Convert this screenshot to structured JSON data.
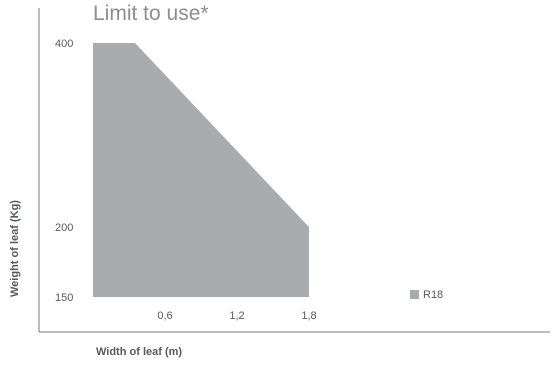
{
  "chart_data": {
    "type": "area",
    "title": "Limit to use*",
    "xlabel": "Width of leaf (m)",
    "ylabel": "Weight of leaf (Kg)",
    "x_ticks": [
      "0,6",
      "1,2",
      "1,8"
    ],
    "x_tick_values": [
      0.6,
      1.2,
      1.8
    ],
    "y_ticks": [
      "150",
      "200",
      "400"
    ],
    "y_tick_values": [
      150,
      200,
      400
    ],
    "xlim": [
      0,
      1.8
    ],
    "ylim": [
      150,
      400
    ],
    "grid": false,
    "legend_position": "right",
    "series": [
      {
        "name": "R18",
        "color": "#a8acaf",
        "x": [
          0,
          0.35,
          1.8,
          1.8,
          0
        ],
        "y": [
          400,
          400,
          200,
          150,
          150
        ]
      }
    ]
  }
}
